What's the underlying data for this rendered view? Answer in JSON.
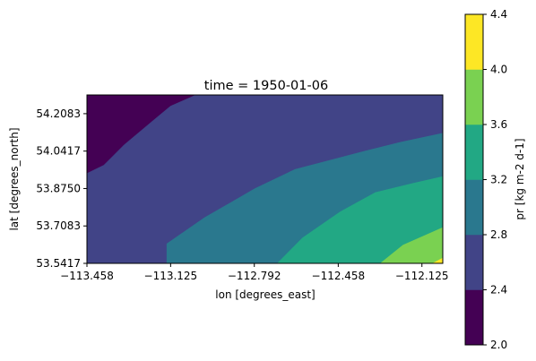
{
  "chart_data": {
    "type": "heatmap",
    "style": "filled-contour",
    "title": "time = 1950-01-06",
    "xlabel": "lon [degrees_east]",
    "ylabel": "lat [degrees_north]",
    "xlim": [
      -113.458,
      -112.042
    ],
    "ylim": [
      53.5417,
      54.2917
    ],
    "x_ticks": [
      -113.458,
      -113.125,
      -112.792,
      -112.458,
      -112.125
    ],
    "x_tick_labels": [
      "−113.458",
      "−113.125",
      "−112.792",
      "−112.458",
      "−112.125"
    ],
    "y_ticks": [
      53.5417,
      53.7083,
      53.875,
      54.0417,
      54.2083
    ],
    "y_tick_labels": [
      "53.5417",
      "53.7083",
      "53.8750",
      "54.0417",
      "54.2083"
    ],
    "colorbar": {
      "label": "pr [kg m-2 d-1]",
      "levels": [
        2.0,
        2.4,
        2.8,
        3.2,
        3.6,
        4.0,
        4.4
      ],
      "tick_labels": [
        "2.0",
        "2.4",
        "2.8",
        "3.2",
        "3.6",
        "4.0",
        "4.4"
      ],
      "colors": [
        "#440154",
        "#414487",
        "#2a788e",
        "#22a884",
        "#7ad151",
        "#fde725"
      ]
    },
    "regions": [
      {
        "range": [
          2.0,
          2.4
        ],
        "polygon": [
          [
            -113.458,
            53.9417
          ],
          [
            -113.39,
            53.979
          ],
          [
            -113.31,
            54.069
          ],
          [
            -113.2,
            54.172
          ],
          [
            -113.125,
            54.242
          ],
          [
            -113.023,
            54.292
          ],
          [
            -113.458,
            54.292
          ]
        ]
      },
      {
        "range": [
          2.4,
          2.8
        ],
        "polygon": [
          [
            -113.458,
            53.5417
          ],
          [
            -113.14,
            53.5417
          ],
          [
            -113.14,
            53.629
          ],
          [
            -112.99,
            53.745
          ],
          [
            -112.79,
            53.874
          ],
          [
            -112.63,
            53.96
          ],
          [
            -112.36,
            54.039
          ],
          [
            -112.21,
            54.081
          ],
          [
            -112.042,
            54.121
          ],
          [
            -112.042,
            54.292
          ],
          [
            -113.023,
            54.292
          ],
          [
            -113.125,
            54.242
          ],
          [
            -113.2,
            54.172
          ],
          [
            -113.31,
            54.069
          ],
          [
            -113.39,
            53.979
          ],
          [
            -113.458,
            53.9417
          ]
        ]
      },
      {
        "range": [
          2.8,
          3.2
        ],
        "polygon": [
          [
            -113.14,
            53.5417
          ],
          [
            -112.7,
            53.5417
          ],
          [
            -112.6,
            53.655
          ],
          [
            -112.45,
            53.771
          ],
          [
            -112.31,
            53.857
          ],
          [
            -112.16,
            53.898
          ],
          [
            -112.042,
            53.928
          ],
          [
            -112.042,
            54.121
          ],
          [
            -112.21,
            54.081
          ],
          [
            -112.36,
            54.039
          ],
          [
            -112.63,
            53.96
          ],
          [
            -112.79,
            53.874
          ],
          [
            -112.99,
            53.745
          ],
          [
            -113.14,
            53.629
          ]
        ]
      },
      {
        "range": [
          3.2,
          3.6
        ],
        "polygon": [
          [
            -112.7,
            53.5417
          ],
          [
            -112.29,
            53.5417
          ],
          [
            -112.2,
            53.623
          ],
          [
            -112.042,
            53.701
          ],
          [
            -112.042,
            53.928
          ],
          [
            -112.16,
            53.898
          ],
          [
            -112.31,
            53.857
          ],
          [
            -112.45,
            53.771
          ],
          [
            -112.6,
            53.655
          ]
        ]
      },
      {
        "range": [
          3.6,
          4.0
        ],
        "polygon": [
          [
            -112.29,
            53.5417
          ],
          [
            -112.082,
            53.5417
          ],
          [
            -112.042,
            53.565
          ],
          [
            -112.042,
            53.701
          ],
          [
            -112.2,
            53.623
          ]
        ]
      },
      {
        "range": [
          4.0,
          4.4
        ],
        "polygon": [
          [
            -112.082,
            53.5417
          ],
          [
            -112.042,
            53.5417
          ],
          [
            -112.042,
            53.565
          ]
        ]
      }
    ]
  }
}
